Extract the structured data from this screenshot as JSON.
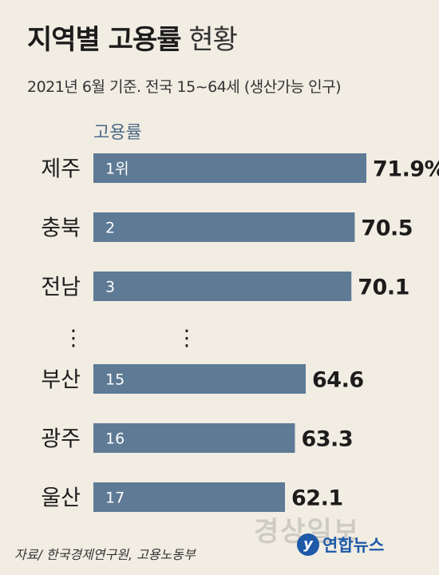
{
  "header": {
    "title_bold": "지역별 고용률",
    "title_light": "현황",
    "subtitle": "2021년 6월 기준. 전국 15~64세 (생산가능 인구)"
  },
  "colors": {
    "bar": "#5e7a95",
    "background": "#f1ede3",
    "series_label": "#4d6a86",
    "logo": "#1e5aa8"
  },
  "chart_data": {
    "type": "bar",
    "orientation": "horizontal",
    "series_label": "고용률",
    "categories": [
      "제주",
      "충북",
      "전남",
      "부산",
      "광주",
      "울산"
    ],
    "ranks": [
      "1위",
      "2",
      "3",
      "15",
      "16",
      "17"
    ],
    "values": [
      71.9,
      70.5,
      70.1,
      64.6,
      63.3,
      62.1
    ],
    "value_labels": [
      "71.9%",
      "70.5",
      "70.1",
      "64.6",
      "63.3",
      "62.1"
    ],
    "gap_after_index": 2,
    "gap_marker": "⋮",
    "grid": false,
    "legend": "none"
  },
  "footer": {
    "source": "자료/ 한국경제연구원, 고용노동부",
    "logo_mark": "y",
    "logo_text": "연합뉴스",
    "watermark": "경상일보"
  }
}
